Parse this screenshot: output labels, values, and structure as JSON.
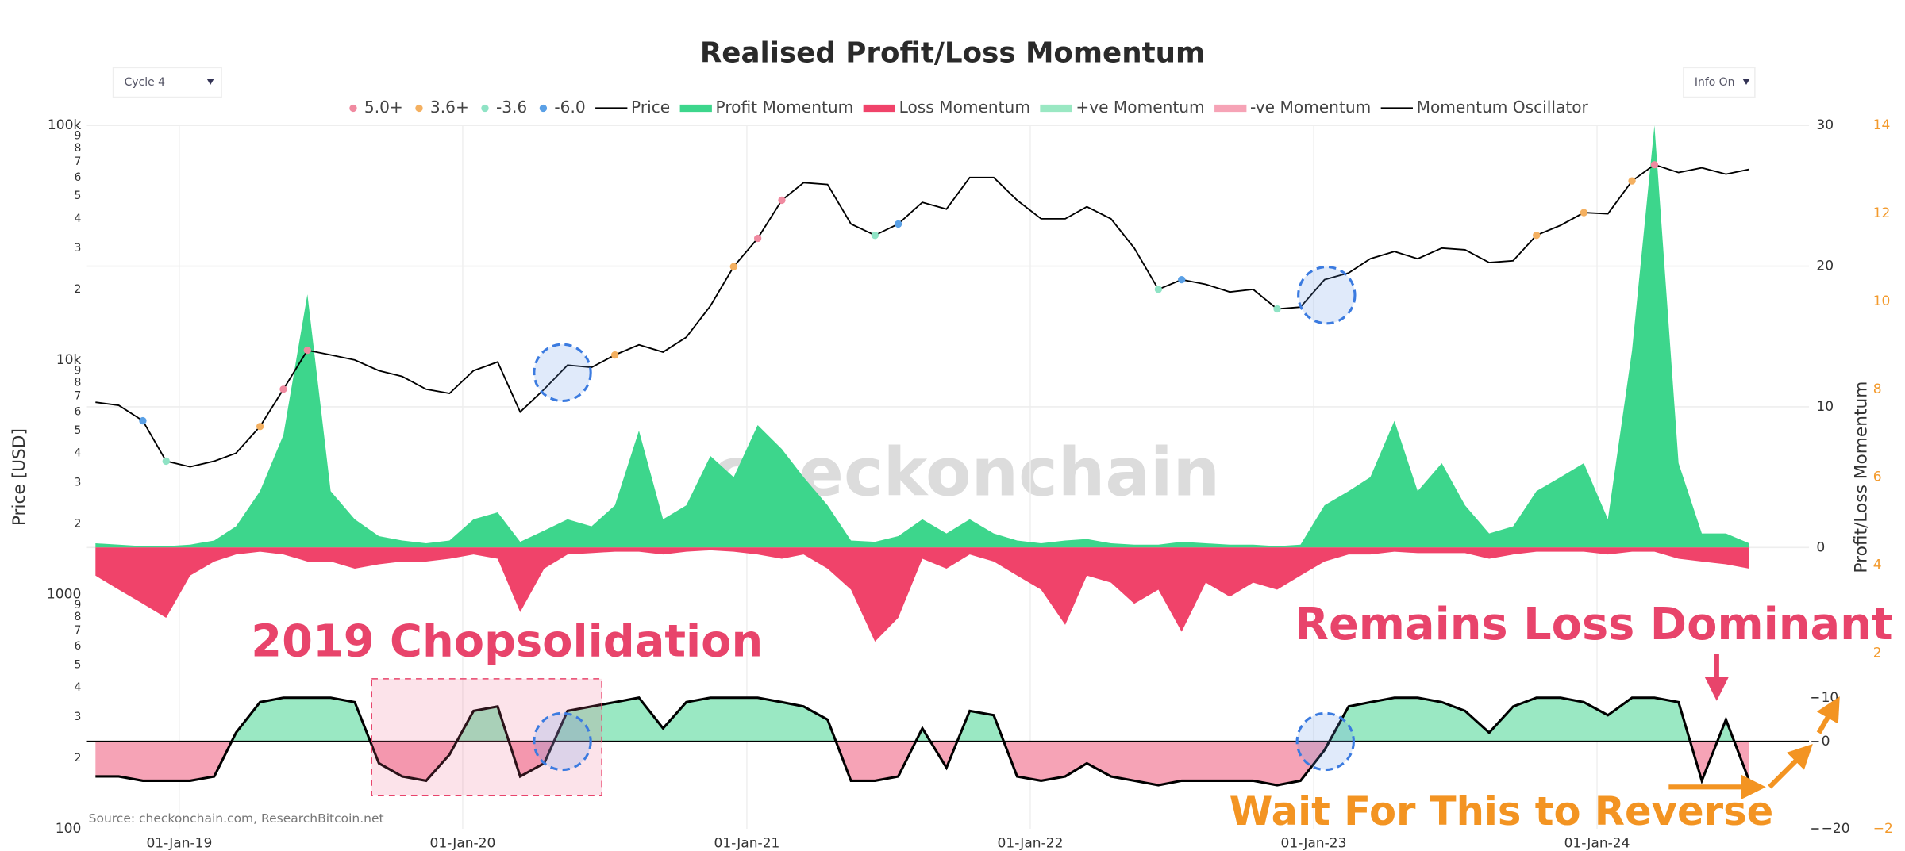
{
  "chart_data": {
    "type": "line",
    "title": "Realised Profit/Loss Momentum",
    "controls": {
      "cycle": "Cycle 4",
      "info": "Info On"
    },
    "x": [
      "2018-09-15",
      "2018-10-15",
      "2018-11-15",
      "2018-12-15",
      "2019-01-15",
      "2019-02-15",
      "2019-03-15",
      "2019-04-15",
      "2019-05-15",
      "2019-06-15",
      "2019-07-15",
      "2019-08-15",
      "2019-09-15",
      "2019-10-15",
      "2019-11-15",
      "2019-12-15",
      "2020-01-15",
      "2020-02-15",
      "2020-03-15",
      "2020-04-15",
      "2020-05-15",
      "2020-06-15",
      "2020-07-15",
      "2020-08-15",
      "2020-09-15",
      "2020-10-15",
      "2020-11-15",
      "2020-12-15",
      "2021-01-15",
      "2021-02-15",
      "2021-03-15",
      "2021-04-15",
      "2021-05-15",
      "2021-06-15",
      "2021-07-15",
      "2021-08-15",
      "2021-09-15",
      "2021-10-15",
      "2021-11-15",
      "2021-12-15",
      "2022-01-15",
      "2022-02-15",
      "2022-03-15",
      "2022-04-15",
      "2022-05-15",
      "2022-06-15",
      "2022-07-15",
      "2022-08-15",
      "2022-09-15",
      "2022-10-15",
      "2022-11-15",
      "2022-12-15",
      "2023-01-15",
      "2023-02-15",
      "2023-03-15",
      "2023-04-15",
      "2023-05-15",
      "2023-06-15",
      "2023-07-15",
      "2023-08-15",
      "2023-09-15",
      "2023-10-15",
      "2023-11-15",
      "2023-12-15",
      "2024-01-15",
      "2024-02-15",
      "2024-03-15",
      "2024-04-15",
      "2024-05-15",
      "2024-06-15",
      "2024-07-15"
    ],
    "xlim": [
      "2018-09-03",
      "2024-09-30"
    ],
    "xticks": [
      {
        "value": "2019-01-01",
        "label": "01-Jan-19"
      },
      {
        "value": "2020-01-01",
        "label": "01-Jan-20"
      },
      {
        "value": "2021-01-01",
        "label": "01-Jan-21"
      },
      {
        "value": "2022-01-01",
        "label": "01-Jan-22"
      },
      {
        "value": "2023-01-01",
        "label": "01-Jan-23"
      },
      {
        "value": "2024-01-01",
        "label": "01-Jan-24"
      }
    ],
    "ylabel": "Price [USD]",
    "log_y": true,
    "ylim": [
      100,
      100000
    ],
    "yticks": [
      100,
      {
        "value": 200,
        "label": "2"
      },
      {
        "value": 300,
        "label": "3"
      },
      {
        "value": 400,
        "label": "4"
      },
      {
        "value": 500,
        "label": "5"
      },
      {
        "value": 600,
        "label": "6"
      },
      {
        "value": 700,
        "label": "7"
      },
      {
        "value": 800,
        "label": "8"
      },
      {
        "value": 900,
        "label": "9"
      },
      1000,
      {
        "value": 2000,
        "label": "2"
      },
      {
        "value": 3000,
        "label": "3"
      },
      {
        "value": 4000,
        "label": "4"
      },
      {
        "value": 5000,
        "label": "5"
      },
      {
        "value": 6000,
        "label": "6"
      },
      {
        "value": 7000,
        "label": "7"
      },
      {
        "value": 8000,
        "label": "8"
      },
      {
        "value": 9000,
        "label": "9"
      },
      {
        "value": 10000,
        "label": "10k"
      },
      {
        "value": 20000,
        "label": "2"
      },
      {
        "value": 30000,
        "label": "3"
      },
      {
        "value": 40000,
        "label": "4"
      },
      {
        "value": 50000,
        "label": "5"
      },
      {
        "value": 60000,
        "label": "6"
      },
      {
        "value": 70000,
        "label": "7"
      },
      {
        "value": 80000,
        "label": "8"
      },
      {
        "value": 90000,
        "label": "9"
      },
      {
        "value": 100000,
        "label": "100k"
      }
    ],
    "y2label": "Profit/Loss Momentum",
    "y2lim": [
      -20,
      30
    ],
    "y2ticks": [
      0,
      10,
      20,
      30
    ],
    "y3lim": [
      -2,
      14
    ],
    "y3ticks": [
      14,
      12,
      10,
      8,
      6,
      4,
      2,
      {
        "value": -2,
        "label": "−2"
      }
    ],
    "y3color": "#f39a2c",
    "y4lim": [
      -20,
      141
    ],
    "y4ticks": [
      10,
      0,
      {
        "value": -20,
        "label": "−20"
      }
    ],
    "grid": true,
    "series": [
      {
        "name": "5.0+",
        "type": "scatter",
        "color": "#f08aa0",
        "x": [
          "2019-05-15",
          "2019-06-15",
          "2021-01-15",
          "2021-02-15",
          "2024-03-15"
        ],
        "values": [
          7500,
          11000,
          33000,
          48000,
          68000
        ]
      },
      {
        "name": "3.6+",
        "type": "scatter",
        "color": "#f4b060",
        "x": [
          "2019-04-15",
          "2020-07-15",
          "2020-12-15",
          "2023-10-15",
          "2023-12-15",
          "2024-02-15"
        ],
        "values": [
          5200,
          10500,
          25000,
          34000,
          42500,
          58000
        ]
      },
      {
        "name": "-3.6",
        "type": "scatter",
        "color": "#8fe3c5",
        "x": [
          "2018-12-15",
          "2021-06-15",
          "2022-06-15",
          "2022-11-15"
        ],
        "values": [
          3700,
          34000,
          20000,
          16500
        ]
      },
      {
        "name": "-6.0",
        "type": "scatter",
        "color": "#5aa0e6",
        "x": [
          "2018-11-15",
          "2021-07-15",
          "2022-07-15"
        ],
        "values": [
          5500,
          38000,
          22000
        ]
      },
      {
        "name": "Price",
        "type": "line",
        "color": "#000000",
        "values": [
          6600,
          6400,
          5500,
          3700,
          3500,
          3700,
          4000,
          5200,
          7500,
          11000,
          10500,
          10000,
          9000,
          8500,
          7500,
          7200,
          9000,
          9800,
          6000,
          7500,
          9500,
          9300,
          10500,
          11600,
          10800,
          12500,
          17000,
          25000,
          33000,
          48000,
          57000,
          56000,
          38000,
          34000,
          38000,
          47000,
          44000,
          60000,
          60000,
          48000,
          40000,
          40000,
          45000,
          40000,
          30000,
          20000,
          22000,
          21000,
          19500,
          20000,
          16500,
          16800,
          22000,
          23500,
          27000,
          29000,
          27000,
          30000,
          29500,
          26000,
          26500,
          34000,
          37500,
          42500,
          42000,
          58000,
          68000,
          63000,
          66000,
          62000,
          65000
        ]
      },
      {
        "name": "Profit Momentum",
        "type": "area",
        "axis": "y2",
        "color": "#3dd68c",
        "values": [
          0.3,
          0.2,
          0.1,
          0.1,
          0.2,
          0.5,
          1.5,
          4,
          8,
          18,
          4,
          2,
          0.8,
          0.5,
          0.3,
          0.5,
          2,
          2.5,
          0.4,
          1.2,
          2,
          1.5,
          3,
          8.3,
          2,
          3,
          6.5,
          5,
          8.7,
          7,
          5,
          3,
          0.5,
          0.4,
          0.8,
          2,
          1,
          2,
          1,
          0.5,
          0.3,
          0.5,
          0.6,
          0.3,
          0.2,
          0.2,
          0.4,
          0.3,
          0.2,
          0.2,
          0.1,
          0.2,
          3,
          4,
          5,
          9,
          4,
          6,
          3,
          1,
          1.5,
          4,
          5,
          6,
          2,
          14,
          30,
          6,
          1,
          1,
          0.3
        ]
      },
      {
        "name": "Loss Momentum",
        "type": "area",
        "axis": "y2",
        "color": "#f0436a",
        "values": [
          -2,
          -3,
          -4,
          -5,
          -2,
          -1,
          -0.5,
          -0.3,
          -0.5,
          -1,
          -1,
          -1.5,
          -1.2,
          -1,
          -1,
          -0.8,
          -0.5,
          -0.8,
          -4.6,
          -1.5,
          -0.5,
          -0.4,
          -0.3,
          -0.3,
          -0.5,
          -0.3,
          -0.2,
          -0.3,
          -0.5,
          -0.8,
          -0.5,
          -1.5,
          -3,
          -6.7,
          -5,
          -0.8,
          -1.5,
          -0.5,
          -1,
          -2,
          -3,
          -5.5,
          -2,
          -2.5,
          -4,
          -3,
          -6,
          -2.5,
          -3.5,
          -2.5,
          -3,
          -2,
          -1,
          -0.5,
          -0.5,
          -0.3,
          -0.4,
          -0.4,
          -0.4,
          -0.8,
          -0.5,
          -0.3,
          -0.3,
          -0.3,
          -0.5,
          -0.3,
          -0.3,
          -0.8,
          -1,
          -1.2,
          -1.5
        ]
      },
      {
        "name": "+ve Momentum",
        "type": "fill_above",
        "color": "#9ae8c3"
      },
      {
        "name": "-ve Momentum",
        "type": "fill_below",
        "color": "#f6a3b6"
      },
      {
        "name": "Momentum Oscillator",
        "type": "oscillator",
        "axis": "y4",
        "color": "#000000",
        "values": [
          -8,
          -8,
          -9,
          -9,
          -9,
          -8,
          2,
          9,
          10,
          10,
          10,
          9,
          -5,
          -8,
          -9,
          -3,
          7,
          8,
          -8,
          -5,
          7,
          8,
          9,
          10,
          3,
          9,
          10,
          10,
          10,
          9,
          8,
          5,
          -9,
          -9,
          -8,
          3,
          -6,
          7,
          6,
          -8,
          -9,
          -8,
          -5,
          -8,
          -9,
          -10,
          -9,
          -9,
          -9,
          -9,
          -10,
          -9,
          -2,
          8,
          9,
          10,
          10,
          9,
          7,
          2,
          8,
          10,
          10,
          9,
          6,
          10,
          10,
          9,
          -9,
          5,
          -9
        ]
      }
    ],
    "annotations": [
      {
        "text": "2019 Chopsolidation",
        "color": "#e8446b"
      },
      {
        "text": "Remains Loss Dominant",
        "color": "#e8446b"
      },
      {
        "text": "Wait For This to Reverse",
        "color": "#f39422"
      }
    ],
    "watermark": "checkonchain",
    "source": "Source: checkonchain.com, ResearchBitcoin.net"
  }
}
